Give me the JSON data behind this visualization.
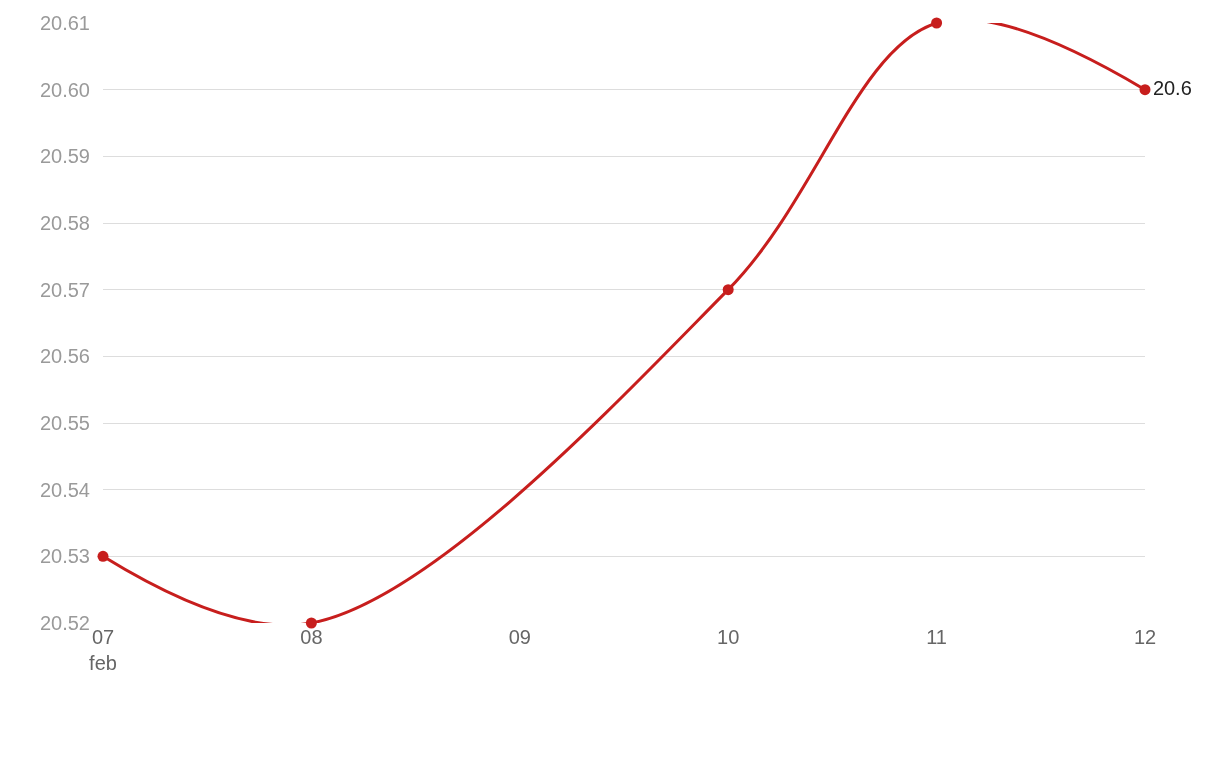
{
  "chart_data": {
    "type": "line",
    "x": [
      "--02-07",
      "--02-08",
      "--02-10",
      "--02-11",
      "--02-12"
    ],
    "series": [
      {
        "color": "#c71e1d",
        "values": [
          20.53,
          20.52,
          20.57,
          20.61,
          20.6
        ],
        "value_labels": [
          null,
          null,
          null,
          null,
          "20.6"
        ]
      }
    ],
    "xlim": [
      "--02-07",
      "--02-12"
    ],
    "xticks": [
      {
        "value": "--02-07",
        "label": "07\nfeb"
      },
      {
        "value": "--02-08",
        "label": "08"
      },
      {
        "value": "--02-09",
        "label": "09"
      },
      {
        "value": "--02-10",
        "label": "10"
      },
      {
        "value": "--02-11",
        "label": "11"
      },
      {
        "value": "--02-12",
        "label": "12"
      }
    ],
    "ylim": [
      20.52,
      20.61
    ],
    "yticks": [
      20.52,
      20.53,
      20.54,
      20.55,
      20.56,
      20.57,
      20.58,
      20.59,
      {
        "value": 20.6,
        "label": "20.60"
      },
      20.61
    ],
    "grid": "y",
    "marker": "circle",
    "line_style": "solid"
  }
}
